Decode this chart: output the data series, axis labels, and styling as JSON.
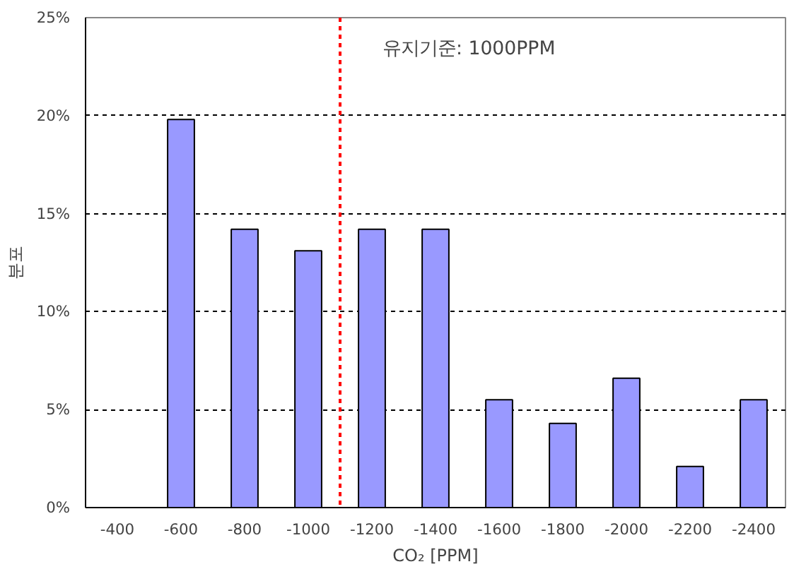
{
  "chart_data": {
    "type": "bar",
    "xlabel": "CO₂ [PPM]",
    "ylabel": "분포",
    "categories": [
      "-400",
      "-600",
      "-800",
      "-1000",
      "-1200",
      "-1400",
      "-1600",
      "-1800",
      "-2000",
      "-2200",
      "-2400"
    ],
    "values": [
      null,
      19.8,
      14.2,
      13.1,
      14.2,
      14.2,
      5.5,
      4.3,
      6.6,
      2.1,
      5.5
    ],
    "color": "#9999ff",
    "ylim": [
      0,
      25
    ],
    "yticks": [
      {
        "value": 0,
        "label": "0%"
      },
      {
        "value": 5,
        "label": "5%"
      },
      {
        "value": 10,
        "label": "10%"
      },
      {
        "value": 15,
        "label": "15%"
      },
      {
        "value": 20,
        "label": "20%"
      },
      {
        "value": 25,
        "label": "25%"
      }
    ],
    "grid": "y",
    "ref_lines": [
      {
        "axis": "x",
        "value": "-1000",
        "label": "유지기준: 1000PPM",
        "color": "#ff0000",
        "line_style": "dotted"
      }
    ]
  }
}
